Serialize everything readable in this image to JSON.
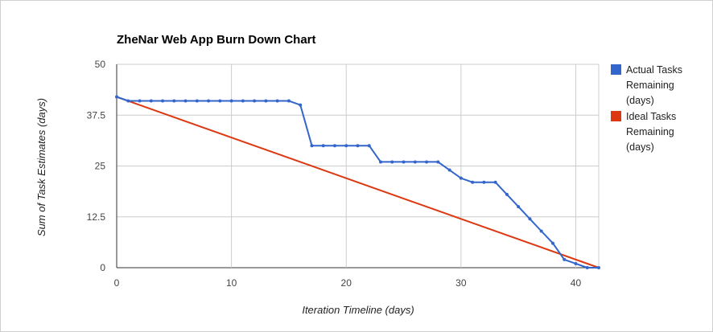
{
  "chart_data": {
    "type": "line",
    "title": "ZheNar Web App Burn Down Chart",
    "xlabel": "Iteration Timeline (days)",
    "ylabel": "Sum of Task Estimates (days)",
    "xlim": [
      0,
      42
    ],
    "ylim": [
      0,
      50
    ],
    "x_ticks": [
      "0",
      "10",
      "20",
      "30",
      "40"
    ],
    "y_ticks": [
      "0",
      "12.5",
      "25",
      "37.5",
      "50"
    ],
    "grid": true,
    "legend_position": "right",
    "series": [
      {
        "name_lines": [
          "Actual Tasks",
          "Remaining",
          "(days)"
        ],
        "color": "#3366cc",
        "markers": true,
        "x": [
          0,
          1,
          2,
          3,
          4,
          5,
          6,
          7,
          8,
          9,
          10,
          11,
          12,
          13,
          14,
          15,
          16,
          17,
          18,
          19,
          20,
          21,
          22,
          23,
          24,
          25,
          26,
          27,
          28,
          29,
          30,
          31,
          32,
          33,
          34,
          35,
          36,
          37,
          38,
          39,
          40,
          41,
          42
        ],
        "y": [
          42,
          41,
          41,
          41,
          41,
          41,
          41,
          41,
          41,
          41,
          41,
          41,
          41,
          41,
          41,
          41,
          40,
          30,
          30,
          30,
          30,
          30,
          30,
          26,
          26,
          26,
          26,
          26,
          26,
          24,
          22,
          21,
          21,
          21,
          18,
          15,
          12,
          9,
          6,
          2,
          1,
          0,
          0
        ]
      },
      {
        "name_lines": [
          "Ideal Tasks",
          "Remaining",
          "(days)"
        ],
        "color": "#dc3912",
        "markers": false,
        "x": [
          0,
          42
        ],
        "y": [
          42,
          0
        ]
      }
    ]
  }
}
